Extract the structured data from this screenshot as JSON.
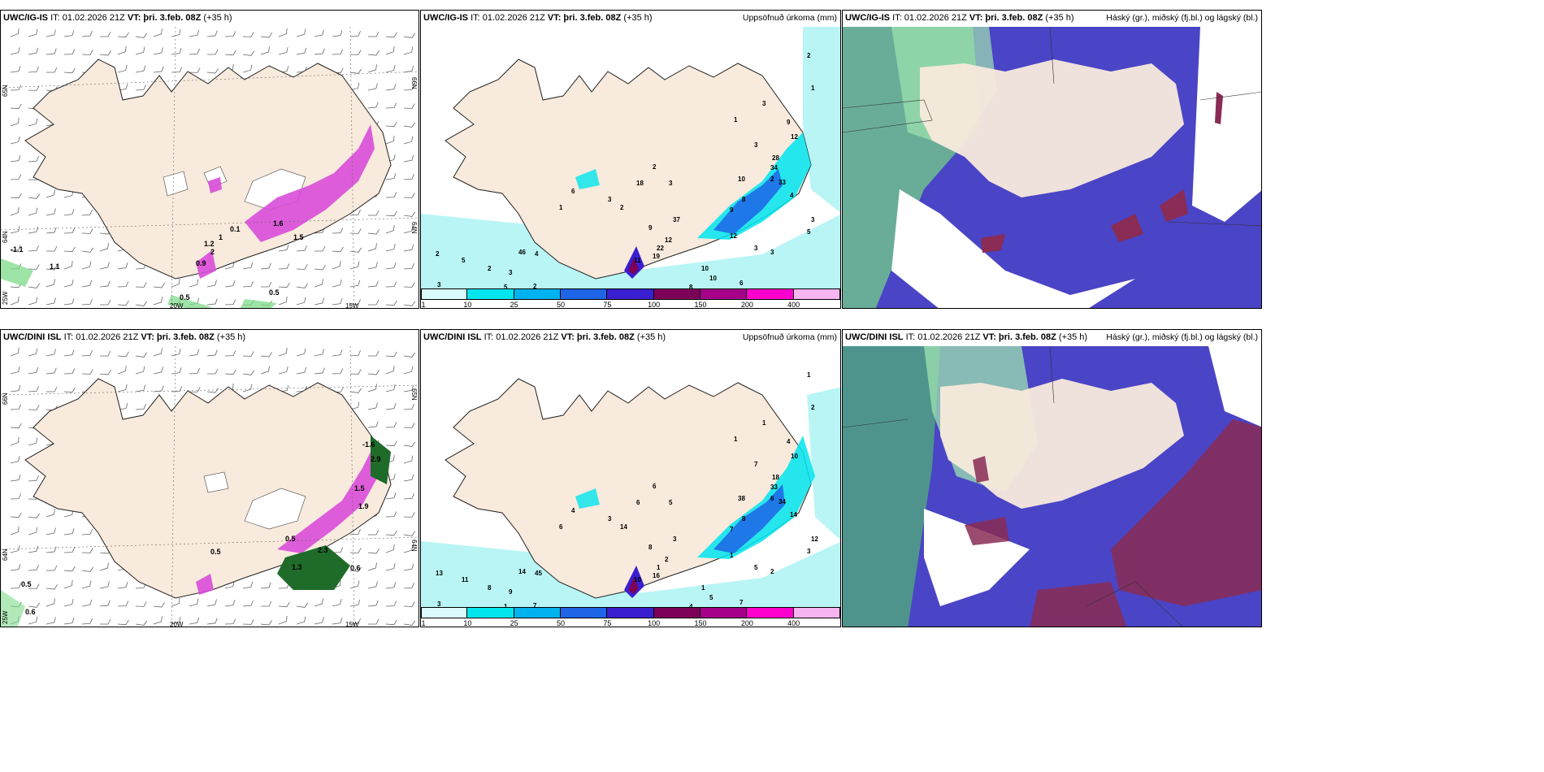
{
  "panels": [
    {
      "model": "UWC/IG-IS",
      "it_label": "IT: 01.02.2026 21Z",
      "vt_label": "VT:",
      "vt_value": "þri. 3.feb. 08Z",
      "lead": "(+35 h)",
      "right_title": "",
      "lat_left_top": "65N",
      "lat_left_bottom": "64N",
      "lon_left_bottom": "25W",
      "lat_right_top": "66N",
      "lat_right_bottom": "64N",
      "lon_labels": [
        "20W",
        "15W"
      ],
      "precip_values": [
        "-1.1",
        "1.1",
        "0.5",
        "0.5",
        "0.9",
        "1.2",
        "1.6",
        "0.1",
        "2",
        "1",
        "1.5"
      ]
    },
    {
      "model": "UWC/IG-IS",
      "it_label": "IT: 01.02.2026 21Z",
      "vt_label": "VT:",
      "vt_value": "þri. 3.feb. 08Z",
      "lead": "(+35 h)",
      "right_title": "Uppsöfnuð úrkoma (mm)",
      "accum_values": [
        "2",
        "1",
        "1",
        "3",
        "9",
        "12",
        "3",
        "28",
        "34",
        "33",
        "10",
        "4",
        "3",
        "8",
        "9",
        "2",
        "18",
        "3",
        "6",
        "3",
        "2",
        "1",
        "9",
        "37",
        "12",
        "22",
        "19",
        "11",
        "46",
        "4",
        "2",
        "5",
        "2",
        "3",
        "2",
        "3",
        "5",
        "3",
        "10",
        "10",
        "8",
        "6",
        "9",
        "11",
        "7",
        "3",
        "12",
        "3",
        "5",
        "2"
      ]
    },
    {
      "model": "UWC/IG-IS",
      "it_label": "IT: 01.02.2026 21Z",
      "vt_label": "VT:",
      "vt_value": "þri. 3.feb. 08Z",
      "lead": "(+35 h)",
      "right_title": "Háský (gr.), miðský (fj.bl.) og lágský (bl.)"
    },
    {
      "model": "UWC/DINI ISL",
      "it_label": "IT: 01.02.2026 21Z",
      "vt_label": "VT:",
      "vt_value": "þri. 3.feb. 08Z",
      "lead": "(+35 h)",
      "right_title": "",
      "lat_left_top": "66N",
      "lat_left_bottom": "64N",
      "lon_left_bottom": "25W",
      "lat_right_top": "65N",
      "lat_right_bottom": "64N",
      "lon_labels": [
        "20W",
        "15W"
      ],
      "precip_values": [
        "-1.6",
        "1.5",
        "2.9",
        "0.5",
        "0.6",
        "0.5",
        "0.6",
        "1.3",
        "2.3",
        "1.9",
        "0.5"
      ]
    },
    {
      "model": "UWC/DINI ISL",
      "it_label": "IT: 01.02.2026 21Z",
      "vt_label": "VT:",
      "vt_value": "þri. 3.feb. 08Z",
      "lead": "(+35 h)",
      "right_title": "Uppsöfnuð úrkoma (mm)",
      "accum_values": [
        "1",
        "2",
        "1",
        "1",
        "4",
        "10",
        "7",
        "18",
        "33",
        "34",
        "38",
        "14",
        "12",
        "8",
        "7",
        "6",
        "6",
        "5",
        "4",
        "3",
        "14",
        "6",
        "8",
        "3",
        "2",
        "1",
        "16",
        "10",
        "14",
        "45",
        "13",
        "11",
        "8",
        "9",
        "7",
        "3",
        "1",
        "2",
        "1",
        "5",
        "4",
        "7",
        "6",
        "4",
        "7",
        "5",
        "1",
        "2",
        "3",
        "6"
      ]
    },
    {
      "model": "UWC/DINI ISL",
      "it_label": "IT: 01.02.2026 21Z",
      "vt_label": "VT:",
      "vt_value": "þri. 3.feb. 08Z",
      "lead": "(+35 h)",
      "right_title": "Háský (gr.), miðský (fj.bl.) og lágský (bl.)"
    }
  ],
  "colorbar": {
    "labels": [
      "1",
      "10",
      "25",
      "50",
      "75",
      "100",
      "150",
      "200",
      "400"
    ],
    "colors": [
      "#d9fbfb",
      "#00e5ee",
      "#00b2ee",
      "#1e64e6",
      "#3a1fd0",
      "#7d0058",
      "#a5008a",
      "#ff00cc",
      "#f6b4f0"
    ]
  },
  "colors": {
    "land": "#f8eadc",
    "sea_precip": "#b9f5f5",
    "cloud_high": "#6fbf8f",
    "cloud_mid": "#4a44c6",
    "cloud_low": "#8a2c55",
    "snow_magenta": "#d94dd9"
  }
}
